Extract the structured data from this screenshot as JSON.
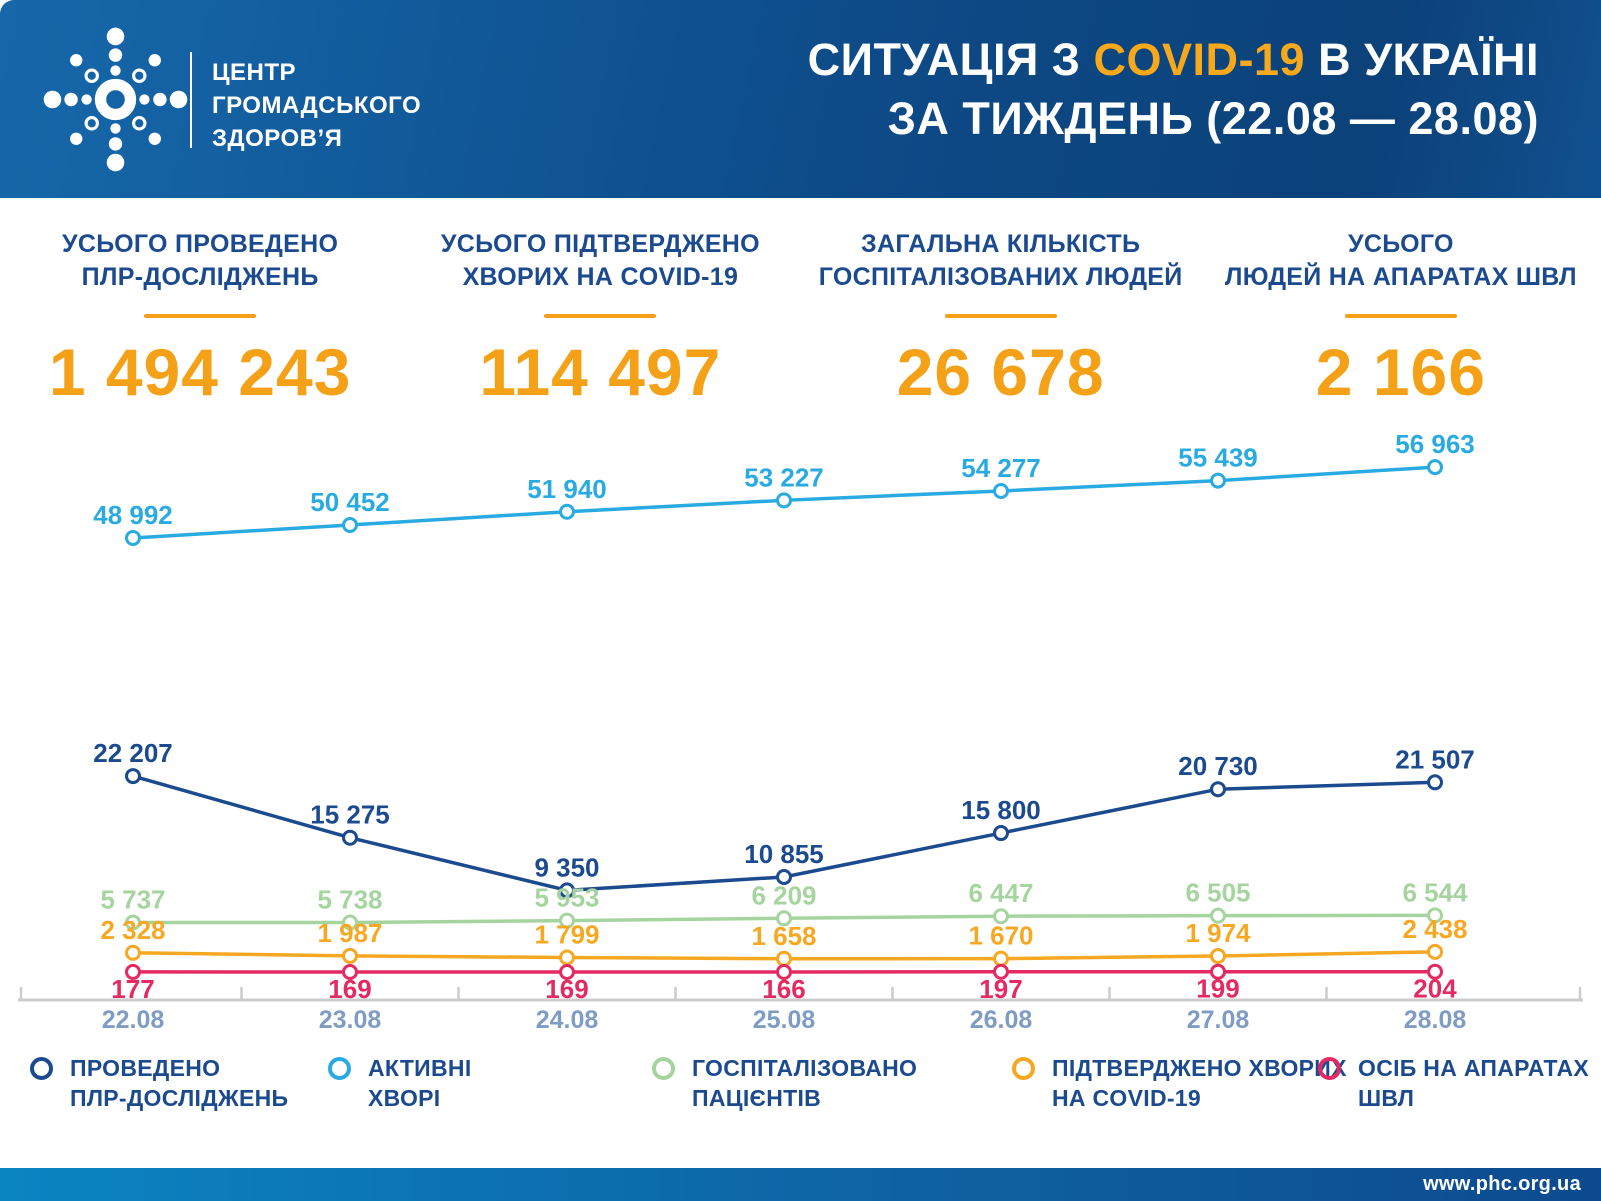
{
  "header": {
    "logo_line1": "ЦЕНТР",
    "logo_line2": "ГРОМАДСЬКОГО",
    "logo_line3": "ЗДОРОВ’Я",
    "title_line1_prefix": "СИТУАЦІЯ З ",
    "title_line1_highlight": "COVID-19",
    "title_line1_suffix": " В УКРАЇНІ",
    "title_line2": "ЗА ТИЖДЕНЬ (22.08 — 28.08)"
  },
  "stats": [
    {
      "label_line1": "УСЬОГО ПРОВЕДЕНО",
      "label_line2": "ПЛР-ДОСЛІДЖЕНЬ",
      "value": "1 494 243"
    },
    {
      "label_line1": "УСЬОГО ПІДТВЕРДЖЕНО",
      "label_line2": "ХВОРИХ НА COVID-19",
      "value": "114 497"
    },
    {
      "label_line1": "ЗАГАЛЬНА КІЛЬКІСТЬ",
      "label_line2": "ГОСПІТАЛІЗОВАНИХ ЛЮДЕЙ",
      "value": "26 678"
    },
    {
      "label_line1": "УСЬОГО",
      "label_line2": "ЛЮДЕЙ НА АПАРАТАХ ШВЛ",
      "value": "2 166"
    }
  ],
  "chart_data": {
    "type": "line",
    "x": [
      "22.08",
      "23.08",
      "24.08",
      "25.08",
      "26.08",
      "27.08",
      "28.08"
    ],
    "series": [
      {
        "name": "АКТИВНІ ХВОРІ",
        "color": "#29ABE2",
        "label_position": "above",
        "values": [
          48992,
          50452,
          51940,
          53227,
          54277,
          55439,
          56963
        ]
      },
      {
        "name": "ПРОВЕДЕНО ПЛР-ДОСЛІДЖЕНЬ",
        "color": "#1B4A8E",
        "label_position": "above",
        "values": [
          22207,
          15275,
          9350,
          10855,
          15800,
          20730,
          21507
        ]
      },
      {
        "name": "ГОСПІТАЛІЗОВАНО ПАЦІЄНТІВ",
        "color": "#A6D49F",
        "label_position": "above",
        "values": [
          5737,
          5738,
          5953,
          6209,
          6447,
          6505,
          6544
        ]
      },
      {
        "name": "ПІДТВЕРДЖЕНО ХВОРИХ НА COVID-19",
        "color": "#F7A823",
        "label_position": "above",
        "values": [
          2328,
          1987,
          1799,
          1658,
          1670,
          1974,
          2438
        ]
      },
      {
        "name": "ОСІБ НА АПАРАТАХ ШВЛ",
        "color": "#E42A62",
        "label_position": "below",
        "values": [
          177,
          169,
          169,
          166,
          197,
          199,
          204
        ]
      }
    ],
    "title": "",
    "xlabel": "",
    "ylabel": "",
    "grid": false,
    "legend_position": "bottom",
    "axis_color": "#CCCCCC",
    "point_style": "hollow-circle",
    "number_format": "space-thousands"
  },
  "legend": [
    {
      "line1": "ПРОВЕДЕНО",
      "line2": "ПЛР-ДОСЛІДЖЕНЬ",
      "color": "#1B4A8E"
    },
    {
      "line1": "АКТИВНІ",
      "line2": "ХВОРІ",
      "color": "#29ABE2"
    },
    {
      "line1": "ГОСПІТАЛІЗОВАНО",
      "line2": "ПАЦІЄНТІВ",
      "color": "#A6D49F"
    },
    {
      "line1": "ПІДТВЕРДЖЕНО ХВОРИХ",
      "line2": "НА COVID-19",
      "color": "#F7A823"
    },
    {
      "line1": "ОСІБ НА АПАРАТАХ",
      "line2": "ШВЛ",
      "color": "#E42A62"
    }
  ],
  "footer": {
    "url": "www.phc.org.ua"
  }
}
